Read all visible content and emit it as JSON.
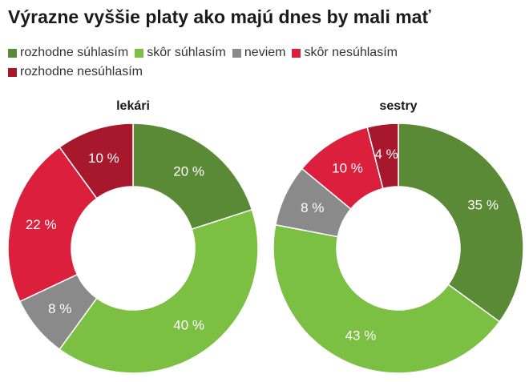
{
  "title": "Výrazne vyššie platy ako majú dnes by mali mať",
  "legend": [
    {
      "label": "rozhodne súhlasím",
      "color": "#5b8a36"
    },
    {
      "label": "skôr súhlasím",
      "color": "#7bc043"
    },
    {
      "label": "neviem",
      "color": "#8a8a8a"
    },
    {
      "label": "skôr nesúhlasím",
      "color": "#dc1f3c"
    },
    {
      "label": "rozhodne nesúhlasím",
      "color": "#a8182d"
    }
  ],
  "chart_data": [
    {
      "type": "pie",
      "title": "lekári",
      "categories": [
        "rozhodne súhlasím",
        "skôr súhlasím",
        "neviem",
        "skôr nesúhlasím",
        "rozhodne nesúhlasím"
      ],
      "values": [
        20,
        40,
        8,
        22,
        10
      ],
      "labels": [
        "20 %",
        "40 %",
        "8 %",
        "22 %",
        "10 %"
      ],
      "colors": [
        "#5b8a36",
        "#7bc043",
        "#8a8a8a",
        "#dc1f3c",
        "#a8182d"
      ]
    },
    {
      "type": "pie",
      "title": "sestry",
      "categories": [
        "rozhodne súhlasím",
        "skôr súhlasím",
        "neviem",
        "skôr nesúhlasím",
        "rozhodne nesúhlasím"
      ],
      "values": [
        35,
        43,
        8,
        10,
        4
      ],
      "labels": [
        "35 %",
        "43 %",
        "8 %",
        "10 %",
        "4 %"
      ],
      "colors": [
        "#5b8a36",
        "#7bc043",
        "#8a8a8a",
        "#dc1f3c",
        "#a8182d"
      ]
    }
  ]
}
